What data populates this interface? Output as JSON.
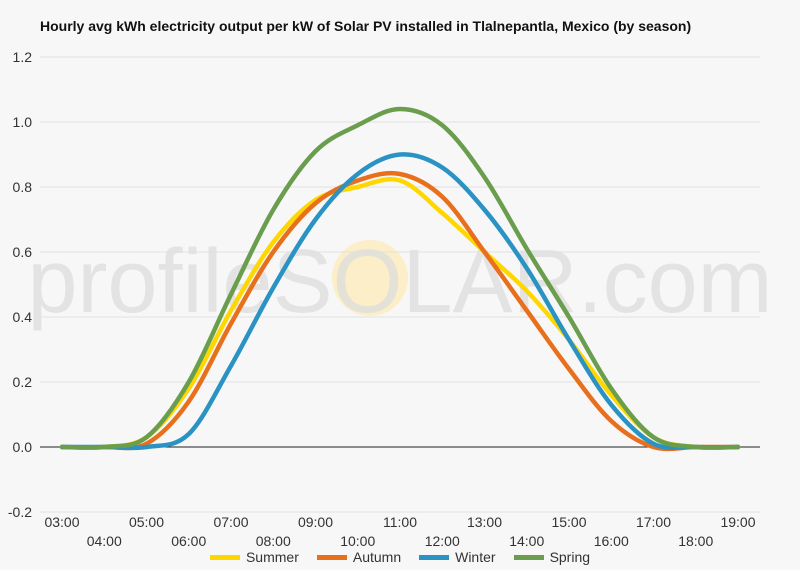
{
  "chart_data": {
    "type": "line",
    "title": "Hourly avg kWh electricity output per kW of Solar PV installed in Tlalnepantla, Mexico (by season)",
    "watermark": "profileSOLAR.com",
    "xlabel": "",
    "ylabel": "",
    "x": [
      "03:00",
      "04:00",
      "05:00",
      "06:00",
      "07:00",
      "08:00",
      "09:00",
      "10:00",
      "11:00",
      "12:00",
      "13:00",
      "14:00",
      "15:00",
      "16:00",
      "17:00",
      "18:00",
      "19:00"
    ],
    "ylim": [
      -0.2,
      1.2
    ],
    "yticks": [
      "-0.2",
      "0.0",
      "0.2",
      "0.4",
      "0.6",
      "0.8",
      "1.0",
      "1.2"
    ],
    "grid": true,
    "legend_position": "bottom",
    "series": [
      {
        "name": "Summer",
        "color": "#ffd700",
        "values": [
          0.0,
          0.0,
          0.03,
          0.18,
          0.42,
          0.63,
          0.76,
          0.8,
          0.82,
          0.72,
          0.6,
          0.48,
          0.33,
          0.16,
          0.03,
          0.0,
          0.0
        ]
      },
      {
        "name": "Autumn",
        "color": "#e86f1c",
        "values": [
          0.0,
          0.0,
          0.01,
          0.14,
          0.38,
          0.6,
          0.75,
          0.82,
          0.84,
          0.77,
          0.6,
          0.42,
          0.24,
          0.08,
          0.0,
          0.0,
          0.0
        ]
      },
      {
        "name": "Winter",
        "color": "#2a93c4",
        "values": [
          0.0,
          0.0,
          0.0,
          0.04,
          0.25,
          0.49,
          0.7,
          0.84,
          0.9,
          0.86,
          0.73,
          0.55,
          0.33,
          0.13,
          0.01,
          0.0,
          0.0
        ]
      },
      {
        "name": "Spring",
        "color": "#6a9e4e",
        "values": [
          0.0,
          0.0,
          0.03,
          0.2,
          0.47,
          0.73,
          0.91,
          0.99,
          1.04,
          0.99,
          0.83,
          0.61,
          0.4,
          0.18,
          0.03,
          0.0,
          0.0
        ]
      }
    ]
  }
}
